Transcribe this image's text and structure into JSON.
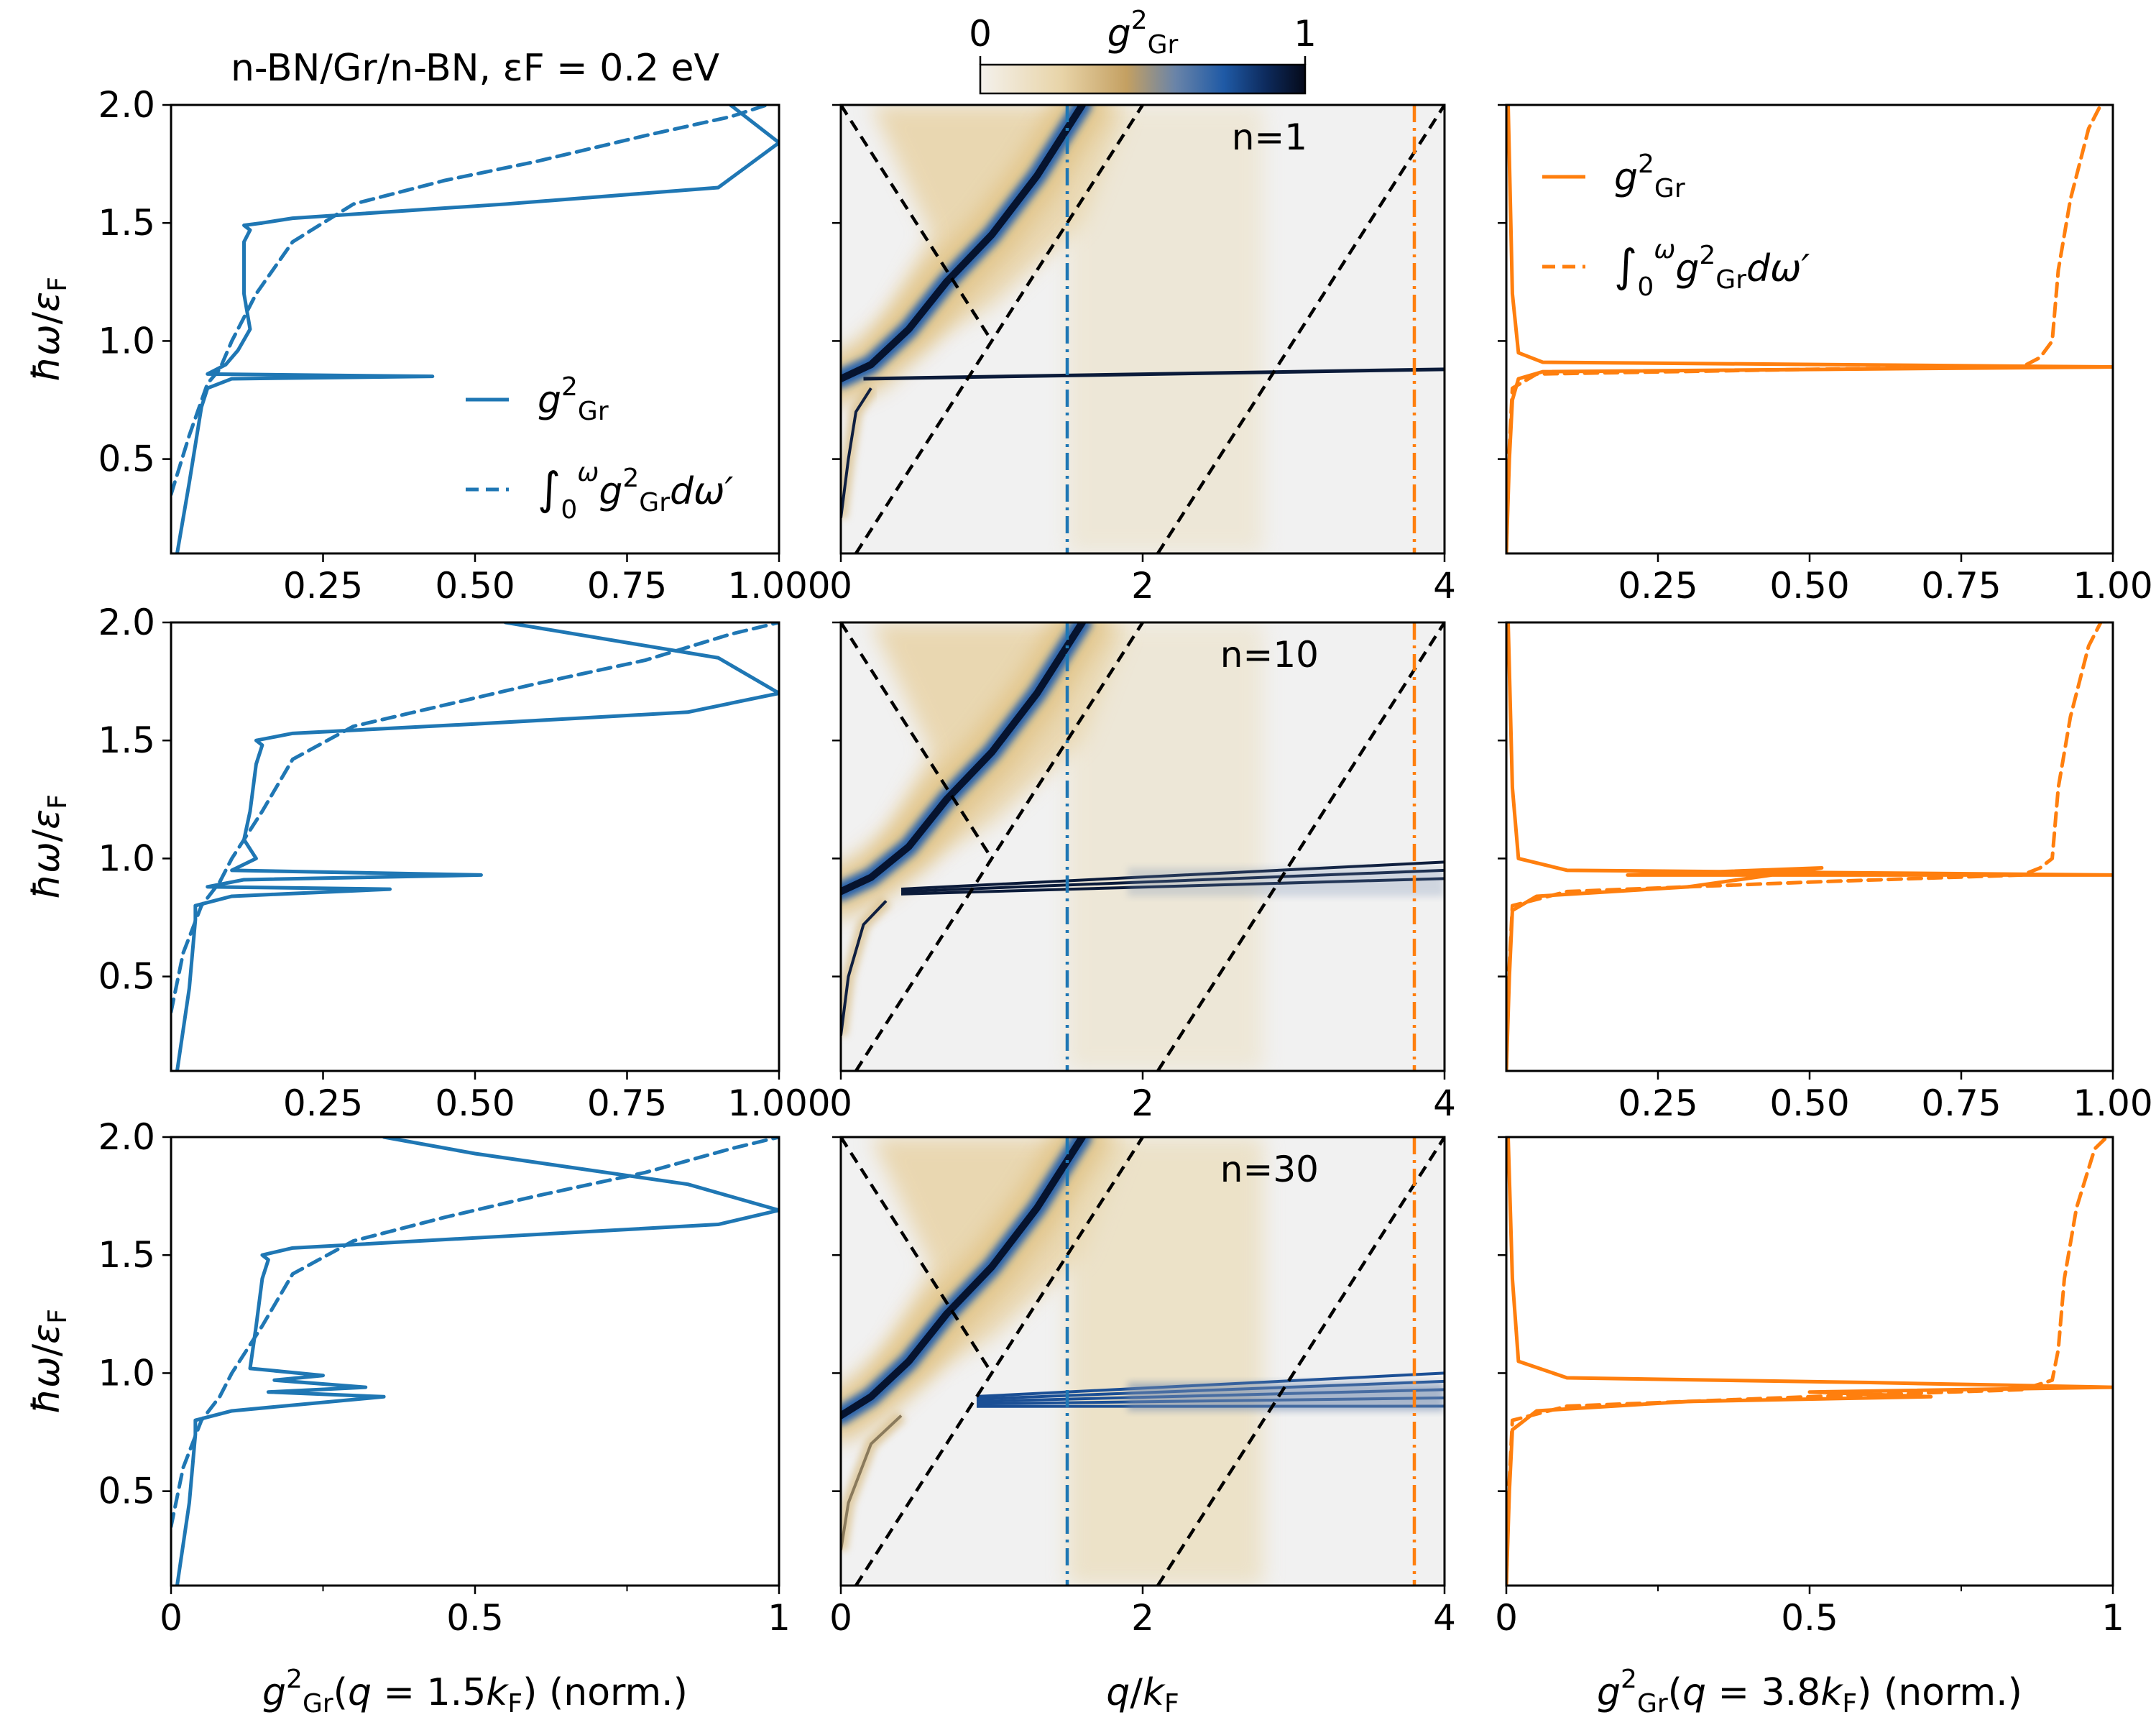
{
  "chart_data": [
    {
      "type": "line",
      "panel": "left-top",
      "title": "n-BN/Gr/n-BN, εF = 0.2 eV",
      "ylabel": "ħω/εF",
      "xlabel": "",
      "xlim": [
        0,
        1
      ],
      "ylim": [
        0.1,
        2.0
      ],
      "xticks": [
        "0.25",
        "0.50",
        "0.75",
        "1.000"
      ],
      "yticks": [
        "0.5",
        "1.0",
        "1.5",
        "2.0"
      ],
      "legend": [
        "g²Gr",
        "∫0ω g²Gr dω′"
      ],
      "legend_position": "center-right",
      "series": [
        {
          "name": "g²Gr",
          "style": "solid",
          "color": "#1f77b4",
          "points": [
            [
              0.01,
              0.1
            ],
            [
              0.03,
              0.4
            ],
            [
              0.05,
              0.72
            ],
            [
              0.06,
              0.8
            ],
            [
              0.1,
              0.84
            ],
            [
              0.43,
              0.85
            ],
            [
              0.06,
              0.86
            ],
            [
              0.09,
              0.9
            ],
            [
              0.11,
              0.96
            ],
            [
              0.13,
              1.05
            ],
            [
              0.12,
              1.2
            ],
            [
              0.12,
              1.42
            ],
            [
              0.13,
              1.47
            ],
            [
              0.12,
              1.49
            ],
            [
              0.15,
              1.5
            ],
            [
              0.2,
              1.52
            ],
            [
              0.55,
              1.58
            ],
            [
              0.9,
              1.65
            ],
            [
              1.0,
              1.84
            ],
            [
              0.92,
              2.0
            ]
          ]
        },
        {
          "name": "∫0ω g²Gr dω′",
          "style": "dashed",
          "color": "#1f77b4",
          "points": [
            [
              0.0,
              0.35
            ],
            [
              0.03,
              0.6
            ],
            [
              0.06,
              0.82
            ],
            [
              0.08,
              0.88
            ],
            [
              0.1,
              1.0
            ],
            [
              0.14,
              1.2
            ],
            [
              0.2,
              1.42
            ],
            [
              0.3,
              1.58
            ],
            [
              0.45,
              1.68
            ],
            [
              0.6,
              1.76
            ],
            [
              0.78,
              1.87
            ],
            [
              0.92,
              1.95
            ],
            [
              0.98,
              2.0
            ]
          ]
        }
      ]
    },
    {
      "type": "heatmap",
      "panel": "center-top",
      "annotation": "n=1",
      "xlim": [
        0,
        4
      ],
      "ylim": [
        0.1,
        2.0
      ],
      "xticks": [
        "0",
        "2",
        "4"
      ],
      "colorbar": {
        "label": "g²Gr",
        "min": "0",
        "max": "1"
      },
      "guides": {
        "blue_q": 1.5,
        "orange_q": 3.8
      },
      "plasmon_upper": [
        [
          0.0,
          0.84
        ],
        [
          0.2,
          0.9
        ],
        [
          0.45,
          1.05
        ],
        [
          0.7,
          1.25
        ],
        [
          1.0,
          1.45
        ],
        [
          1.3,
          1.7
        ],
        [
          1.6,
          2.0
        ]
      ],
      "plasmon_flat": [
        [
          0.15,
          0.84
        ],
        [
          4.0,
          0.88
        ]
      ],
      "plasmon_lower": [
        [
          0.0,
          0.25
        ],
        [
          0.05,
          0.5
        ],
        [
          0.1,
          0.7
        ],
        [
          0.2,
          0.8
        ]
      ]
    },
    {
      "type": "line",
      "panel": "right-top",
      "xlim": [
        0,
        1
      ],
      "ylim": [
        0.1,
        2.0
      ],
      "xticks": [
        "0.25",
        "0.50",
        "0.75",
        "1.00"
      ],
      "legend": [
        "g²Gr",
        "∫0ω g²Gr dω′"
      ],
      "legend_position": "top-left",
      "series": [
        {
          "name": "g²Gr",
          "style": "solid",
          "color": "#ff7f0e",
          "points": [
            [
              0.0,
              0.1
            ],
            [
              0.005,
              0.5
            ],
            [
              0.01,
              0.75
            ],
            [
              0.02,
              0.84
            ],
            [
              0.06,
              0.87
            ],
            [
              1.0,
              0.89
            ],
            [
              0.06,
              0.91
            ],
            [
              0.02,
              0.95
            ],
            [
              0.01,
              1.2
            ],
            [
              0.003,
              2.0
            ]
          ]
        },
        {
          "name": "∫0ω g²Gr dω′",
          "style": "dashed",
          "color": "#ff7f0e",
          "points": [
            [
              0.0,
              0.1
            ],
            [
              0.004,
              0.5
            ],
            [
              0.01,
              0.8
            ],
            [
              0.05,
              0.86
            ],
            [
              0.5,
              0.88
            ],
            [
              0.85,
              0.89
            ],
            [
              0.88,
              0.93
            ],
            [
              0.9,
              1.0
            ],
            [
              0.91,
              1.3
            ],
            [
              0.93,
              1.6
            ],
            [
              0.96,
              1.9
            ],
            [
              0.98,
              2.0
            ]
          ]
        }
      ]
    },
    {
      "type": "line",
      "panel": "left-middle",
      "ylabel": "ħω/εF",
      "xlim": [
        0,
        1
      ],
      "ylim": [
        0.1,
        2.0
      ],
      "xticks": [
        "0.25",
        "0.50",
        "0.75",
        "1.000"
      ],
      "series": [
        {
          "name": "g²Gr",
          "style": "solid",
          "color": "#1f77b4",
          "points": [
            [
              0.01,
              0.1
            ],
            [
              0.03,
              0.45
            ],
            [
              0.04,
              0.74
            ],
            [
              0.04,
              0.8
            ],
            [
              0.1,
              0.84
            ],
            [
              0.36,
              0.87
            ],
            [
              0.06,
              0.88
            ],
            [
              0.12,
              0.91
            ],
            [
              0.51,
              0.93
            ],
            [
              0.1,
              0.95
            ],
            [
              0.14,
              1.0
            ],
            [
              0.12,
              1.08
            ],
            [
              0.13,
              1.2
            ],
            [
              0.14,
              1.4
            ],
            [
              0.15,
              1.48
            ],
            [
              0.14,
              1.5
            ],
            [
              0.2,
              1.53
            ],
            [
              0.5,
              1.57
            ],
            [
              0.85,
              1.62
            ],
            [
              1.0,
              1.7
            ],
            [
              0.9,
              1.85
            ],
            [
              0.55,
              2.0
            ]
          ]
        },
        {
          "name": "∫0ω g²Gr dω′",
          "style": "dashed",
          "color": "#1f77b4",
          "points": [
            [
              0.0,
              0.35
            ],
            [
              0.02,
              0.6
            ],
            [
              0.05,
              0.8
            ],
            [
              0.08,
              0.9
            ],
            [
              0.1,
              1.0
            ],
            [
              0.15,
              1.2
            ],
            [
              0.2,
              1.42
            ],
            [
              0.3,
              1.56
            ],
            [
              0.45,
              1.65
            ],
            [
              0.6,
              1.74
            ],
            [
              0.78,
              1.84
            ],
            [
              0.92,
              1.95
            ],
            [
              1.0,
              2.0
            ]
          ]
        }
      ]
    },
    {
      "type": "heatmap",
      "panel": "center-middle",
      "annotation": "n=10",
      "xlim": [
        0,
        4
      ],
      "ylim": [
        0.1,
        2.0
      ],
      "xticks": [
        "0",
        "2",
        "4"
      ],
      "guides": {
        "blue_q": 1.5,
        "orange_q": 3.8
      },
      "plasmon_upper": [
        [
          0.0,
          0.86
        ],
        [
          0.2,
          0.92
        ],
        [
          0.45,
          1.05
        ],
        [
          0.7,
          1.25
        ],
        [
          1.0,
          1.45
        ],
        [
          1.3,
          1.7
        ],
        [
          1.6,
          2.0
        ]
      ],
      "plasmon_flat": [
        [
          0.4,
          0.86
        ],
        [
          4.0,
          0.95
        ]
      ],
      "plasmon_lower": [
        [
          0.0,
          0.25
        ],
        [
          0.05,
          0.5
        ],
        [
          0.15,
          0.72
        ],
        [
          0.3,
          0.82
        ]
      ]
    },
    {
      "type": "line",
      "panel": "right-middle",
      "xlim": [
        0,
        1
      ],
      "ylim": [
        0.1,
        2.0
      ],
      "xticks": [
        "0.25",
        "0.50",
        "0.75",
        "1.00"
      ],
      "series": [
        {
          "name": "g²Gr",
          "style": "solid",
          "color": "#ff7f0e",
          "points": [
            [
              0.0,
              0.1
            ],
            [
              0.005,
              0.5
            ],
            [
              0.01,
              0.78
            ],
            [
              0.05,
              0.84
            ],
            [
              0.3,
              0.88
            ],
            [
              0.52,
              0.96
            ],
            [
              0.2,
              0.93
            ],
            [
              1.0,
              0.93
            ],
            [
              0.1,
              0.95
            ],
            [
              0.02,
              1.0
            ],
            [
              0.01,
              1.3
            ],
            [
              0.003,
              2.0
            ]
          ]
        },
        {
          "name": "∫0ω g²Gr dω′",
          "style": "dashed",
          "color": "#ff7f0e",
          "points": [
            [
              0.0,
              0.1
            ],
            [
              0.004,
              0.5
            ],
            [
              0.01,
              0.8
            ],
            [
              0.1,
              0.86
            ],
            [
              0.5,
              0.9
            ],
            [
              0.85,
              0.93
            ],
            [
              0.88,
              0.96
            ],
            [
              0.9,
              1.0
            ],
            [
              0.91,
              1.3
            ],
            [
              0.93,
              1.6
            ],
            [
              0.96,
              1.9
            ],
            [
              0.98,
              2.0
            ]
          ]
        }
      ]
    },
    {
      "type": "line",
      "panel": "left-bottom",
      "ylabel": "ħω/εF",
      "xlabel": "g²Gr(q = 1.5kF) (norm.)",
      "xlim": [
        0,
        1
      ],
      "ylim": [
        0.1,
        2.0
      ],
      "xticks": [
        "0",
        "0.5",
        "1"
      ],
      "series": [
        {
          "name": "g²Gr",
          "style": "solid",
          "color": "#1f77b4",
          "points": [
            [
              0.01,
              0.1
            ],
            [
              0.03,
              0.45
            ],
            [
              0.04,
              0.74
            ],
            [
              0.04,
              0.8
            ],
            [
              0.1,
              0.84
            ],
            [
              0.35,
              0.9
            ],
            [
              0.16,
              0.92
            ],
            [
              0.32,
              0.94
            ],
            [
              0.17,
              0.97
            ],
            [
              0.25,
              0.99
            ],
            [
              0.13,
              1.02
            ],
            [
              0.14,
              1.2
            ],
            [
              0.15,
              1.4
            ],
            [
              0.16,
              1.48
            ],
            [
              0.15,
              1.5
            ],
            [
              0.2,
              1.53
            ],
            [
              0.55,
              1.58
            ],
            [
              0.9,
              1.63
            ],
            [
              1.0,
              1.69
            ],
            [
              0.85,
              1.8
            ],
            [
              0.5,
              1.93
            ],
            [
              0.35,
              2.0
            ]
          ]
        },
        {
          "name": "∫0ω g²Gr dω′",
          "style": "dashed",
          "color": "#1f77b4",
          "points": [
            [
              0.0,
              0.35
            ],
            [
              0.02,
              0.6
            ],
            [
              0.05,
              0.8
            ],
            [
              0.08,
              0.9
            ],
            [
              0.1,
              1.0
            ],
            [
              0.15,
              1.2
            ],
            [
              0.2,
              1.42
            ],
            [
              0.3,
              1.56
            ],
            [
              0.45,
              1.66
            ],
            [
              0.6,
              1.75
            ],
            [
              0.78,
              1.85
            ],
            [
              0.92,
              1.95
            ],
            [
              1.0,
              2.0
            ]
          ]
        }
      ]
    },
    {
      "type": "heatmap",
      "panel": "center-bottom",
      "annotation": "n=30",
      "xlabel": "q/kF",
      "xlim": [
        0,
        4
      ],
      "ylim": [
        0.1,
        2.0
      ],
      "xticks": [
        "0",
        "2",
        "4"
      ],
      "guides": {
        "blue_q": 1.5,
        "orange_q": 3.8
      },
      "plasmon_upper": [
        [
          0.0,
          0.82
        ],
        [
          0.2,
          0.9
        ],
        [
          0.45,
          1.05
        ],
        [
          0.7,
          1.25
        ],
        [
          1.0,
          1.45
        ],
        [
          1.3,
          1.7
        ],
        [
          1.6,
          2.0
        ]
      ],
      "plasmon_flat": [
        [
          0.9,
          0.88
        ],
        [
          4.0,
          0.93
        ]
      ],
      "plasmon_lower": [
        [
          0.0,
          0.25
        ],
        [
          0.05,
          0.45
        ],
        [
          0.2,
          0.7
        ],
        [
          0.4,
          0.82
        ]
      ]
    },
    {
      "type": "line",
      "panel": "right-bottom",
      "xlabel": "g²Gr(q = 3.8kF) (norm.)",
      "xlim": [
        0,
        1
      ],
      "ylim": [
        0.1,
        2.0
      ],
      "xticks": [
        "0",
        "0.5",
        "1"
      ],
      "series": [
        {
          "name": "g²Gr",
          "style": "solid",
          "color": "#ff7f0e",
          "points": [
            [
              0.0,
              0.1
            ],
            [
              0.005,
              0.5
            ],
            [
              0.01,
              0.76
            ],
            [
              0.05,
              0.84
            ],
            [
              0.3,
              0.88
            ],
            [
              0.7,
              0.9
            ],
            [
              0.5,
              0.92
            ],
            [
              1.0,
              0.94
            ],
            [
              0.6,
              0.96
            ],
            [
              0.1,
              0.98
            ],
            [
              0.02,
              1.05
            ],
            [
              0.01,
              1.4
            ],
            [
              0.003,
              2.0
            ]
          ]
        },
        {
          "name": "∫0ω g²Gr dω′",
          "style": "dashed",
          "color": "#ff7f0e",
          "points": [
            [
              0.0,
              0.1
            ],
            [
              0.004,
              0.5
            ],
            [
              0.01,
              0.8
            ],
            [
              0.1,
              0.86
            ],
            [
              0.5,
              0.9
            ],
            [
              0.85,
              0.93
            ],
            [
              0.9,
              0.97
            ],
            [
              0.91,
              1.1
            ],
            [
              0.92,
              1.4
            ],
            [
              0.94,
              1.7
            ],
            [
              0.97,
              1.95
            ],
            [
              0.99,
              2.0
            ]
          ]
        }
      ]
    }
  ]
}
